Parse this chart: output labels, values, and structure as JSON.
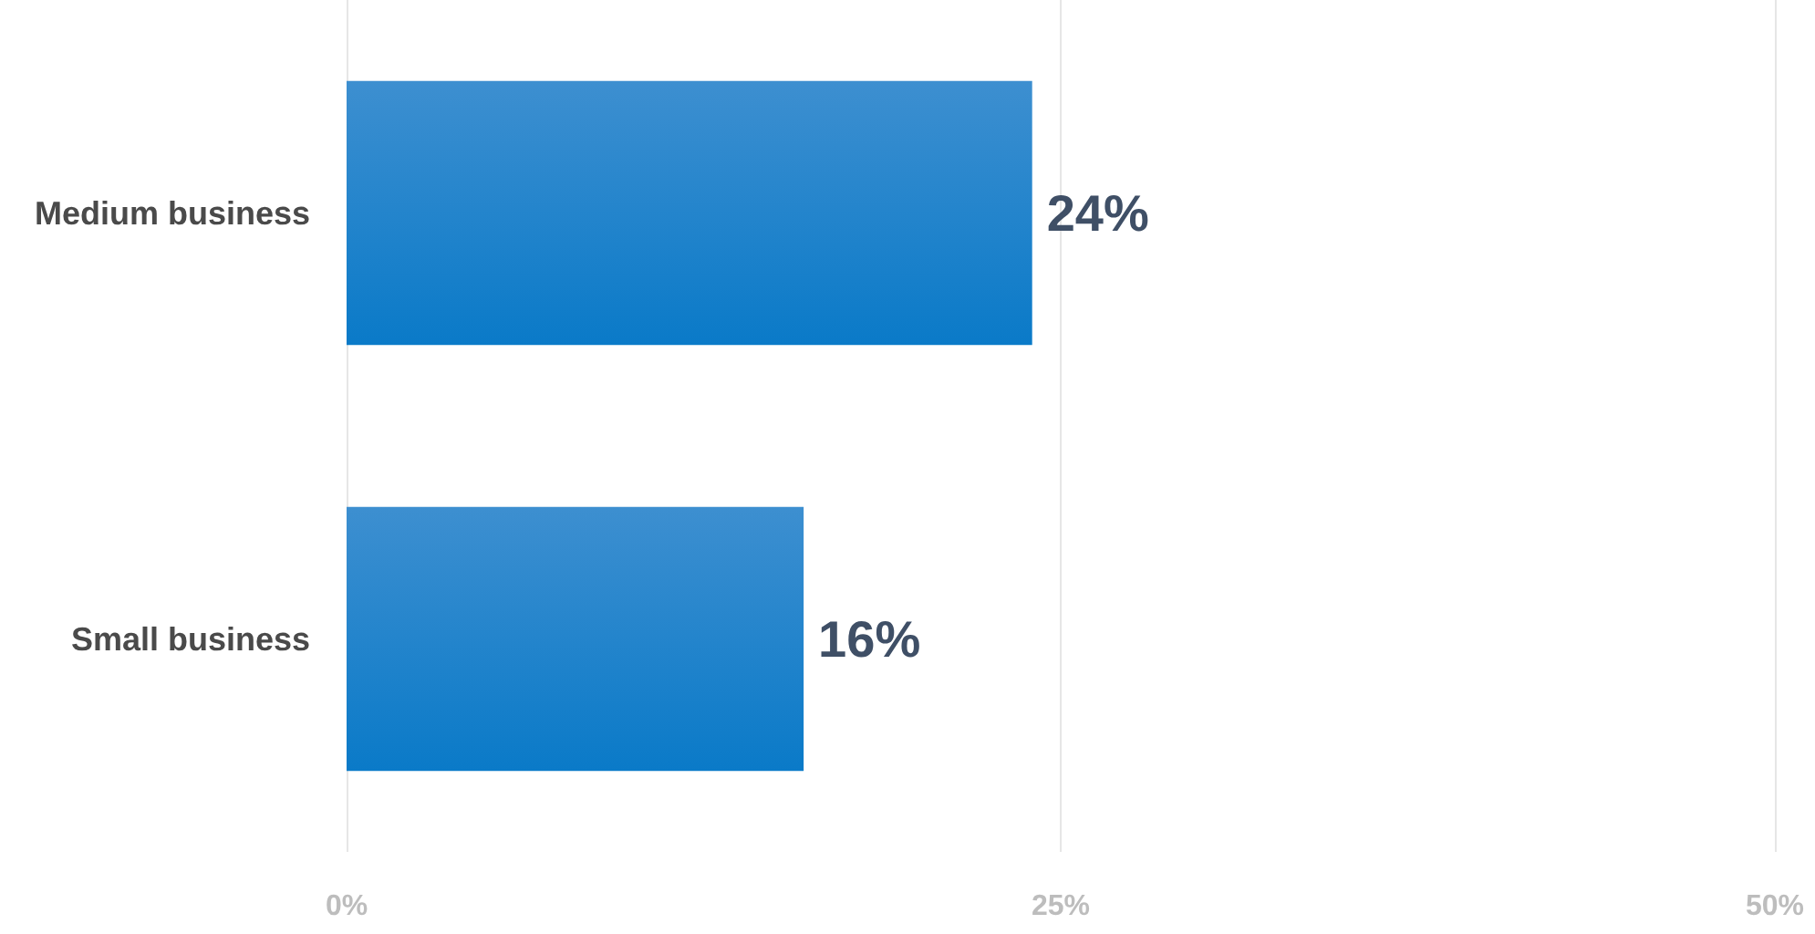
{
  "chart_data": {
    "type": "bar",
    "orientation": "horizontal",
    "categories": [
      "Medium business",
      "Small business"
    ],
    "values": [
      24,
      16
    ],
    "color": "#0a7ac8",
    "value_labels": [
      "24%",
      "16%"
    ],
    "xlim": [
      0,
      50
    ],
    "xticks": [
      {
        "value": 0,
        "label": "0%"
      },
      {
        "value": 25,
        "label": "25%"
      },
      {
        "value": 50,
        "label": "50%"
      }
    ],
    "grid": "x"
  }
}
